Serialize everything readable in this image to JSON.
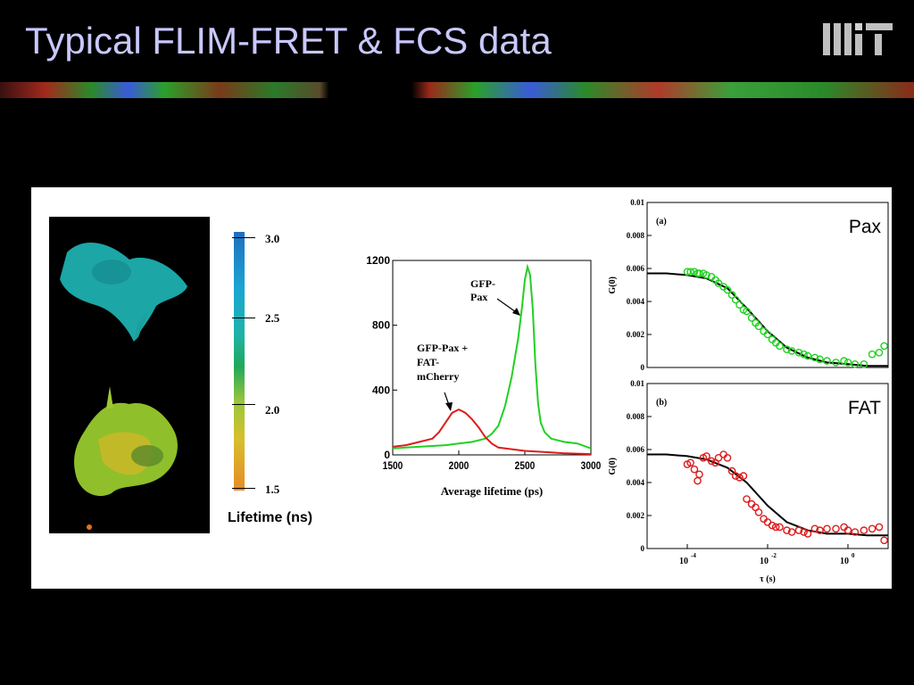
{
  "slide": {
    "title": "Typical FLIM-FRET & FCS data"
  },
  "colorbar": {
    "title": "Lifetime (ns)",
    "ticks": [
      "3.0",
      "2.5",
      "2.0",
      "1.5"
    ]
  },
  "colors": {
    "green": "#22d022",
    "red": "#dd1c1c",
    "title": "#c8c8ff"
  },
  "chart_data": [
    {
      "type": "line",
      "xlabel": "Average lifetime (ps)",
      "ylabel": "",
      "xlim": [
        1500,
        3000
      ],
      "ylim": [
        0,
        1200
      ],
      "xticks": [
        "1500",
        "2000",
        "2500",
        "3000"
      ],
      "yticks": [
        "0",
        "400",
        "800",
        "1200"
      ],
      "annotations": [
        {
          "text": [
            "GFP-",
            "Pax"
          ],
          "series": "green"
        },
        {
          "text": [
            "GFP-Pax +",
            "FAT-",
            "mCherry"
          ],
          "series": "red"
        }
      ],
      "series": [
        {
          "color": "green",
          "x": [
            1500,
            1600,
            1700,
            1800,
            1900,
            2000,
            2100,
            2200,
            2250,
            2300,
            2350,
            2400,
            2450,
            2480,
            2500,
            2520,
            2540,
            2560,
            2580,
            2600,
            2620,
            2650,
            2700,
            2750,
            2800,
            2900,
            3000
          ],
          "y": [
            40,
            45,
            50,
            55,
            60,
            70,
            80,
            100,
            130,
            180,
            300,
            480,
            720,
            920,
            1080,
            1160,
            1110,
            900,
            560,
            320,
            200,
            140,
            100,
            90,
            80,
            70,
            40
          ]
        },
        {
          "color": "red",
          "x": [
            1500,
            1600,
            1700,
            1800,
            1850,
            1900,
            1950,
            2000,
            2050,
            2100,
            2150,
            2200,
            2250,
            2300,
            2400,
            2500,
            2600,
            2700,
            2800,
            3000
          ],
          "y": [
            50,
            60,
            80,
            100,
            140,
            200,
            260,
            280,
            260,
            220,
            170,
            110,
            70,
            45,
            35,
            25,
            20,
            15,
            10,
            5
          ]
        }
      ]
    },
    {
      "type": "scatter",
      "panel": "(a)",
      "label": "Pax",
      "xlabel": "",
      "ylabel": "G(0)",
      "ylim": [
        0,
        0.01
      ],
      "yticks": [
        "0",
        "0.002",
        "0.004",
        "0.006",
        "0.008",
        "0.01"
      ],
      "log_x": true,
      "xlim": [
        1e-05,
        10
      ],
      "points_x": [
        0.0001,
        0.00012,
        0.00015,
        0.00018,
        0.0002,
        0.00025,
        0.0003,
        0.0004,
        0.0005,
        0.0006,
        0.0008,
        0.001,
        0.0013,
        0.0016,
        0.002,
        0.0025,
        0.003,
        0.004,
        0.005,
        0.006,
        0.008,
        0.01,
        0.013,
        0.016,
        0.02,
        0.03,
        0.04,
        0.06,
        0.08,
        0.1,
        0.15,
        0.2,
        0.3,
        0.5,
        0.8,
        1,
        1.5,
        2.5,
        4,
        6,
        8
      ],
      "points_y": [
        0.0058,
        0.0058,
        0.0058,
        0.0057,
        0.0057,
        0.0057,
        0.0056,
        0.0055,
        0.0053,
        0.0051,
        0.0049,
        0.0047,
        0.0044,
        0.0041,
        0.0038,
        0.0035,
        0.0034,
        0.003,
        0.0027,
        0.0025,
        0.0022,
        0.002,
        0.0017,
        0.0015,
        0.0013,
        0.0011,
        0.001,
        0.0009,
        0.0008,
        0.0007,
        0.0006,
        0.0005,
        0.0004,
        0.0003,
        0.0004,
        0.0003,
        0.0002,
        0.0002,
        0.0008,
        0.0009,
        0.0013
      ],
      "fit_x": [
        1e-05,
        3e-05,
        0.0001,
        0.0003,
        0.001,
        0.003,
        0.01,
        0.03,
        0.1,
        0.3,
        1,
        3,
        10
      ],
      "fit_y": [
        0.0057,
        0.0057,
        0.0056,
        0.0054,
        0.0048,
        0.0036,
        0.0022,
        0.0012,
        0.0006,
        0.0003,
        0.0002,
        0.0001,
        0.0001
      ]
    },
    {
      "type": "scatter",
      "panel": "(b)",
      "label": "FAT",
      "xlabel": "τ (s)",
      "ylabel": "G(0)",
      "ylim": [
        0,
        0.01
      ],
      "yticks": [
        "0",
        "0.002",
        "0.004",
        "0.006",
        "0.008",
        "0.01"
      ],
      "xticks": [
        "10",
        "10",
        "10"
      ],
      "xtick_exponents": [
        "-4",
        "-2",
        "0"
      ],
      "log_x": true,
      "xlim": [
        1e-05,
        10
      ],
      "points_x": [
        0.0001,
        0.00012,
        0.00015,
        0.00018,
        0.0002,
        0.00025,
        0.0003,
        0.0004,
        0.0005,
        0.0006,
        0.0008,
        0.001,
        0.0013,
        0.0016,
        0.002,
        0.0025,
        0.003,
        0.004,
        0.005,
        0.006,
        0.008,
        0.01,
        0.013,
        0.016,
        0.02,
        0.03,
        0.04,
        0.06,
        0.08,
        0.1,
        0.15,
        0.2,
        0.3,
        0.5,
        0.8,
        1,
        1.5,
        2.5,
        4,
        6,
        8
      ],
      "points_y": [
        0.0051,
        0.0052,
        0.0048,
        0.0041,
        0.0045,
        0.0055,
        0.0056,
        0.0053,
        0.0052,
        0.0055,
        0.0057,
        0.0055,
        0.0047,
        0.0044,
        0.0043,
        0.0044,
        0.003,
        0.0027,
        0.0025,
        0.0022,
        0.0018,
        0.0016,
        0.0014,
        0.0013,
        0.0013,
        0.0011,
        0.001,
        0.0011,
        0.001,
        0.0009,
        0.0012,
        0.0011,
        0.0012,
        0.0012,
        0.0013,
        0.0011,
        0.001,
        0.0011,
        0.0012,
        0.0013,
        0.0005
      ],
      "fit_x": [
        1e-05,
        3e-05,
        0.0001,
        0.0003,
        0.001,
        0.003,
        0.01,
        0.03,
        0.1,
        0.3,
        1,
        3,
        10
      ],
      "fit_y": [
        0.0057,
        0.0057,
        0.0056,
        0.0054,
        0.0049,
        0.004,
        0.0026,
        0.0016,
        0.0011,
        0.0009,
        0.0009,
        0.0008,
        0.0008
      ]
    }
  ]
}
